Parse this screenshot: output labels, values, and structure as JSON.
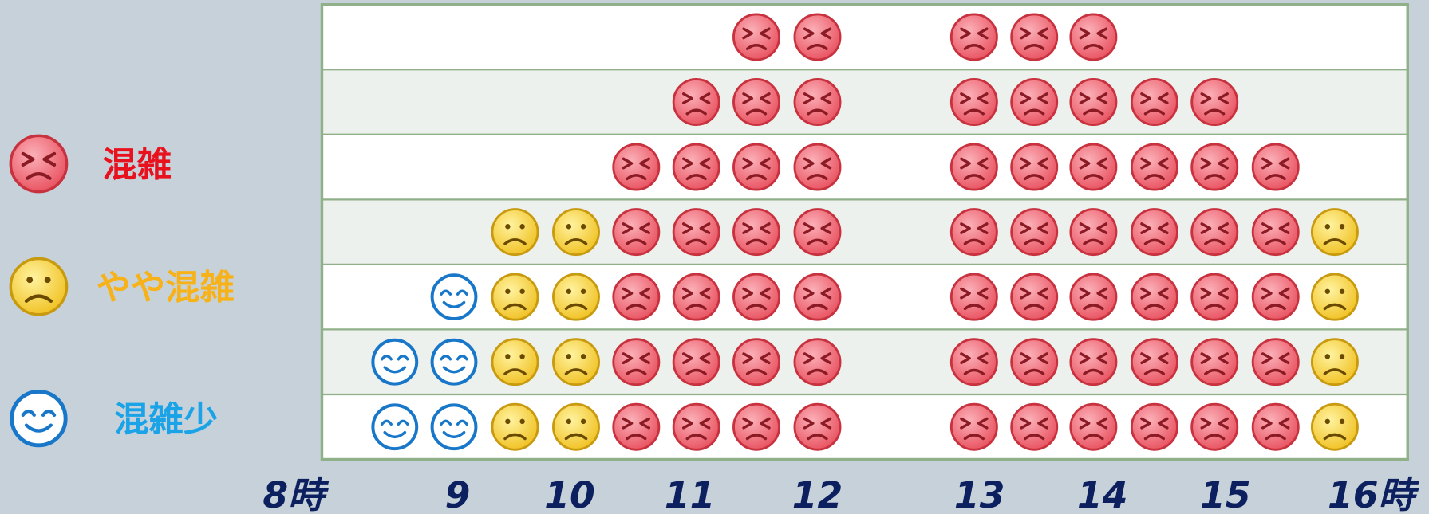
{
  "legend": [
    {
      "label": "混雑",
      "color": "#e8121e"
    },
    {
      "label": "やや混雑",
      "color": "#f7b21a"
    },
    {
      "label": "混雑少",
      "color": "#1aa3e6"
    }
  ],
  "x_labels": [
    "8時",
    "9",
    "10",
    "11",
    "12",
    "13",
    "14",
    "15",
    "16時"
  ],
  "rows": [
    [
      null,
      null,
      null,
      null,
      null,
      null,
      0,
      0,
      0,
      0,
      0,
      null,
      null,
      null,
      null
    ],
    [
      null,
      null,
      null,
      null,
      null,
      0,
      0,
      0,
      0,
      0,
      0,
      0,
      0,
      null,
      null
    ],
    [
      null,
      null,
      null,
      null,
      0,
      0,
      0,
      0,
      0,
      0,
      0,
      0,
      0,
      0,
      null
    ],
    [
      null,
      null,
      1,
      1,
      0,
      0,
      0,
      0,
      0,
      0,
      0,
      0,
      0,
      0,
      1
    ],
    [
      null,
      2,
      1,
      1,
      0,
      0,
      0,
      0,
      0,
      0,
      0,
      0,
      0,
      0,
      1
    ],
    [
      2,
      2,
      1,
      1,
      0,
      0,
      0,
      0,
      0,
      0,
      0,
      0,
      0,
      0,
      1
    ],
    [
      2,
      2,
      1,
      1,
      0,
      0,
      0,
      0,
      0,
      0,
      0,
      0,
      0,
      0,
      1
    ]
  ]
}
